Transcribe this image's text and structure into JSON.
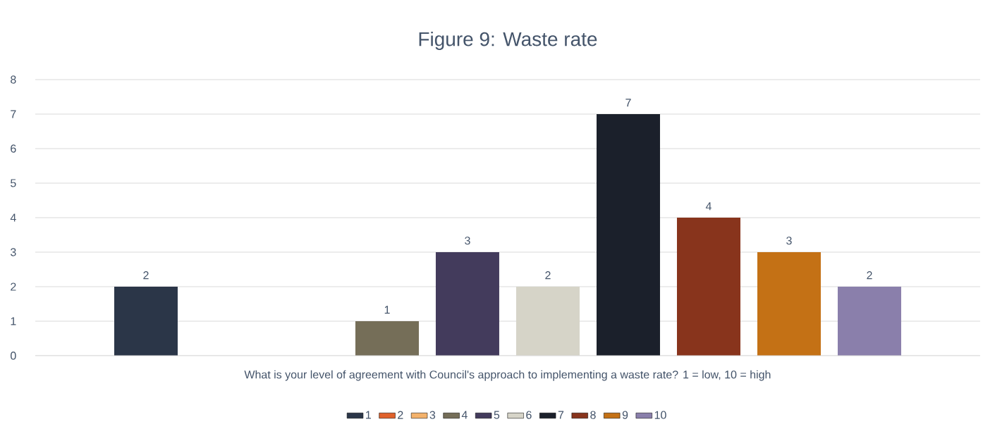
{
  "chart_data": {
    "type": "bar",
    "title": "Figure 9: Waste rate",
    "categories": [
      "What is your level of agreement with Council's approach to implementing a waste rate? 1 = low, 10 = high"
    ],
    "series": [
      {
        "name": "1",
        "color": "#2b3648",
        "values": [
          2
        ]
      },
      {
        "name": "2",
        "color": "#e0612b",
        "values": [
          null
        ]
      },
      {
        "name": "3",
        "color": "#f4b26b",
        "values": [
          null
        ]
      },
      {
        "name": "4",
        "color": "#756e58",
        "values": [
          1
        ]
      },
      {
        "name": "5",
        "color": "#433b5c",
        "values": [
          3
        ]
      },
      {
        "name": "6",
        "color": "#d6d4c8",
        "values": [
          2
        ]
      },
      {
        "name": "7",
        "color": "#1b202b",
        "values": [
          7
        ]
      },
      {
        "name": "8",
        "color": "#88341c",
        "values": [
          4
        ]
      },
      {
        "name": "9",
        "color": "#c47115",
        "values": [
          3
        ]
      },
      {
        "name": "10",
        "color": "#8a7fab",
        "values": [
          2
        ]
      }
    ],
    "ylim": [
      0,
      8
    ],
    "yticks": [
      0,
      1,
      2,
      3,
      4,
      5,
      6,
      7,
      8
    ],
    "grid": "y",
    "legend": "bottom",
    "data_labels": true
  }
}
